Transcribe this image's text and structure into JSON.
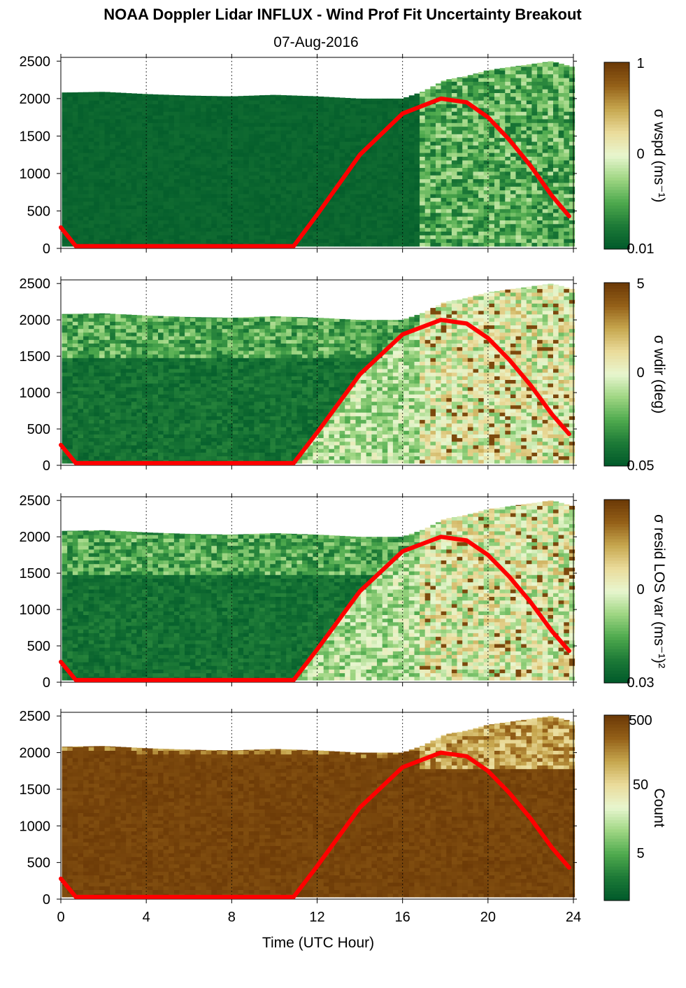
{
  "title": "NOAA Doppler Lidar INFLUX - Wind Prof Fit Uncertainty Breakout",
  "subtitle": "07-Aug-2016",
  "colors": {
    "curve": "#ff0000",
    "colormap": [
      "#00592a",
      "#1d7a37",
      "#4faa4e",
      "#9fd683",
      "#e8f6cf",
      "#eadb9a",
      "#c6a64e",
      "#946018",
      "#6a3806"
    ]
  },
  "chart_data": {
    "type": "heatmap",
    "xlabel": "Time (UTC Hour)",
    "xlim": [
      0,
      24
    ],
    "x_ticks": [
      0,
      4,
      8,
      12,
      16,
      20,
      24
    ],
    "x_tick_labels": [
      "0",
      "4",
      "8",
      "12",
      "16",
      "20",
      "24"
    ],
    "ylim": [
      0,
      2550
    ],
    "y_ticks": [
      0,
      500,
      1000,
      1500,
      2000,
      2500
    ],
    "y_tick_labels": [
      "0",
      "500",
      "1000",
      "1500",
      "2000",
      "2500"
    ],
    "grid": "vertical dotted lines at 4-hour intervals",
    "curve": {
      "color": "red",
      "x": [
        0,
        0.7,
        10.9,
        12,
        14,
        16,
        17.8,
        19,
        20,
        21,
        22,
        23,
        23.8
      ],
      "y": [
        280,
        30,
        30,
        450,
        1250,
        1800,
        2000,
        1950,
        1750,
        1450,
        1100,
        700,
        430
      ]
    },
    "data_top_height": {
      "x": [
        0,
        2,
        4,
        6,
        8,
        10,
        12,
        14,
        16,
        17,
        18,
        19,
        20,
        21,
        22,
        23,
        24
      ],
      "y": [
        2080,
        2090,
        2060,
        2040,
        2030,
        2050,
        2030,
        2000,
        2000,
        2100,
        2250,
        2300,
        2380,
        2420,
        2460,
        2500,
        2420
      ]
    },
    "panels": [
      {
        "name": "wspd",
        "label": "σ wspd (ms⁻¹)",
        "cbar_ticks": [
          "1",
          "0",
          "0.01"
        ],
        "regime": "dark-low"
      },
      {
        "name": "wdir",
        "label": "σ wdir (deg)",
        "cbar_ticks": [
          "5",
          "0",
          "0.05"
        ],
        "regime": "mixed"
      },
      {
        "name": "losvar",
        "label": "σ resid LOS var (ms⁻¹)²",
        "cbar_ticks": [
          "0",
          "0.03"
        ],
        "regime": "mixed"
      },
      {
        "name": "count",
        "label": "Count",
        "cbar_ticks": [
          "500",
          "50",
          "5"
        ],
        "regime": "high"
      }
    ]
  }
}
